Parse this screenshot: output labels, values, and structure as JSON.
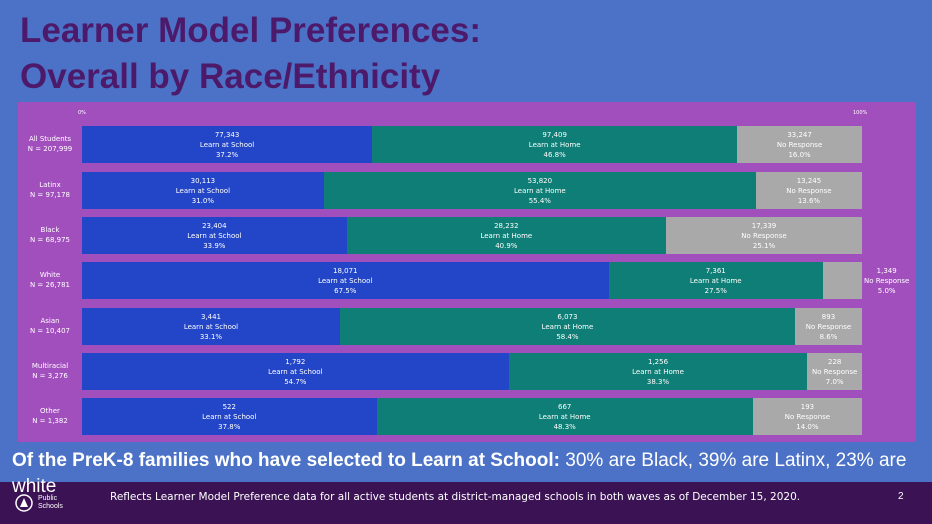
{
  "slide": {
    "title_line1": "Learner Model Preferences:",
    "title_line2": "Overall by Race/Ethnicity",
    "summary_bold": "Of the PreK-8 families who have selected to Learn at School:",
    "summary_rest": " 30% are Black, 39% are Latinx, 23% are white",
    "footnote": "Reflects Learner Model Preference data for all active students at district-managed schools in both waves as of December 15, 2020.",
    "slide_number": "2",
    "logo_text_line1": "Public",
    "logo_text_line2": "Schools"
  },
  "colors": {
    "background": "#4b72c6",
    "chart_background": "#a24fbe",
    "title": "#4d1a6b",
    "learn_at_school": "#2346c8",
    "learn_at_home": "#0f7e76",
    "no_response": "#a9a9a9",
    "footer": "#3b1354"
  },
  "chart_data": {
    "type": "bar",
    "orientation": "horizontal",
    "stacked": "percent",
    "axis_min_label": "0%",
    "axis_max_label": "100%",
    "xlim": [
      0,
      100
    ],
    "categories": [
      {
        "name": "All Students",
        "n": "N = 207,999"
      },
      {
        "name": "Latinx",
        "n": "N = 97,178"
      },
      {
        "name": "Black",
        "n": "N = 68,975"
      },
      {
        "name": "White",
        "n": "N = 26,781"
      },
      {
        "name": "Asian",
        "n": "N = 10,407"
      },
      {
        "name": "Multiracial",
        "n": "N = 3,276"
      },
      {
        "name": "Other",
        "n": "N = 1,382"
      }
    ],
    "series": [
      {
        "name": "Learn at School",
        "counts": [
          "77,343",
          "30,113",
          "23,404",
          "18,071",
          "3,441",
          "1,792",
          "522"
        ],
        "percents": [
          "37.2%",
          "31.0%",
          "33.9%",
          "67.5%",
          "33.1%",
          "54.7%",
          "37.8%"
        ],
        "values": [
          37.2,
          31.0,
          33.9,
          67.5,
          33.1,
          54.7,
          37.8
        ]
      },
      {
        "name": "Learn at Home",
        "counts": [
          "97,409",
          "53,820",
          "28,232",
          "7,361",
          "6,073",
          "1,256",
          "667"
        ],
        "percents": [
          "46.8%",
          "55.4%",
          "40.9%",
          "27.5%",
          "58.4%",
          "38.3%",
          "48.3%"
        ],
        "values": [
          46.8,
          55.4,
          40.9,
          27.5,
          58.4,
          38.3,
          48.3
        ]
      },
      {
        "name": "No Response",
        "counts": [
          "33,247",
          "13,245",
          "17,339",
          "1,349",
          "893",
          "228",
          "193"
        ],
        "percents": [
          "16.0%",
          "13.6%",
          "25.1%",
          "5.0%",
          "8.6%",
          "7.0%",
          "14.0%"
        ],
        "values": [
          16.0,
          13.6,
          25.1,
          5.0,
          8.6,
          7.0,
          14.0
        ]
      }
    ]
  }
}
